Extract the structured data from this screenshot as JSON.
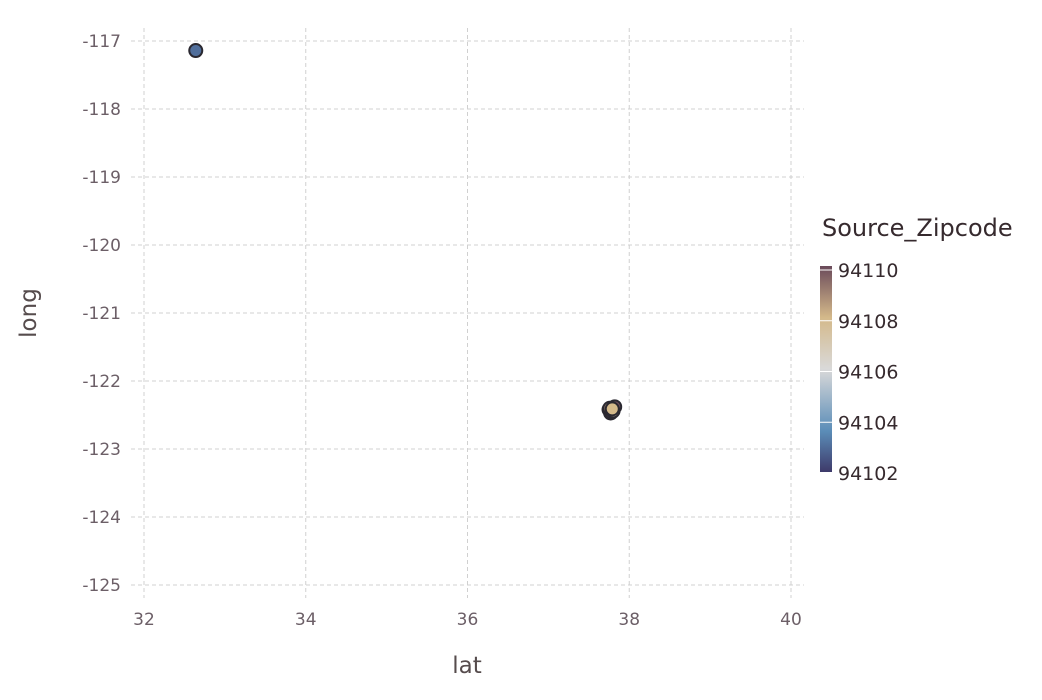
{
  "chart_data": {
    "type": "scatter",
    "title": "",
    "xlabel": "lat",
    "ylabel": "long",
    "xlim": [
      32,
      40
    ],
    "ylim": [
      -125,
      -117
    ],
    "x_ticks": [
      "32",
      "34",
      "36",
      "38",
      "40"
    ],
    "y_ticks": [
      "-117",
      "-118",
      "-119",
      "-120",
      "-121",
      "-122",
      "-123",
      "-124",
      "-125"
    ],
    "grid": true,
    "legend": {
      "title": "Source_Zipcode",
      "placement": "right",
      "range": [
        94102,
        94110
      ],
      "ticks": [
        "94110",
        "94108",
        "94106",
        "94104",
        "94102"
      ],
      "colors": [
        "#3e3a6a",
        "#5b8db8",
        "#d9d9d9",
        "#d4b98a",
        "#6a4a5a"
      ]
    },
    "points": [
      {
        "x": 32.64,
        "y": -117.14,
        "zipcode": 94103
      },
      {
        "x": 37.76,
        "y": -122.43,
        "zipcode": 94110
      },
      {
        "x": 37.77,
        "y": -122.45,
        "zipcode": 94109
      },
      {
        "x": 37.78,
        "y": -122.41,
        "zipcode": 94110
      },
      {
        "x": 37.8,
        "y": -122.4,
        "zipcode": 94109
      },
      {
        "x": 37.79,
        "y": -122.44,
        "zipcode": 94108
      },
      {
        "x": 37.75,
        "y": -122.42,
        "zipcode": 94110
      },
      {
        "x": 37.77,
        "y": -122.47,
        "zipcode": 94109
      },
      {
        "x": 37.82,
        "y": -122.38,
        "zipcode": 94110
      },
      {
        "x": 37.78,
        "y": -122.46,
        "zipcode": 94110
      },
      {
        "x": 37.76,
        "y": -122.4,
        "zipcode": 94109
      },
      {
        "x": 37.8,
        "y": -122.44,
        "zipcode": 94107
      },
      {
        "x": 37.79,
        "y": -122.41,
        "zipcode": 94108
      }
    ]
  }
}
